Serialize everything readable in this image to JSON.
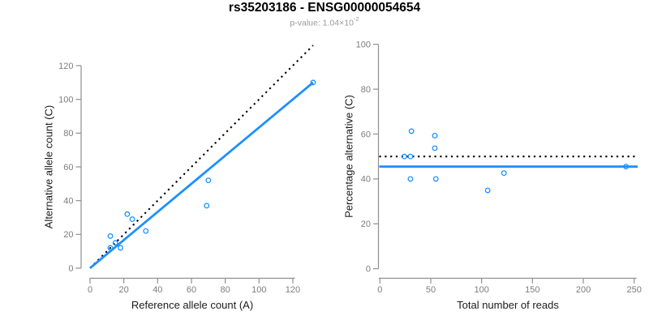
{
  "title": "rs35203186 - ENSG00000054654",
  "subtitle": {
    "text": "p-value: 1.04×10",
    "exponent": "-2"
  },
  "colors": {
    "accent": "#1e90ff",
    "dotted_line": "#000000",
    "axis": "#8f8f8f",
    "tick_label": "#7d7d7d",
    "axis_title": "#1c1c1c",
    "subtitle_gray": "#9a9a9a"
  },
  "chart_data": [
    {
      "type": "scatter",
      "name": "allele-counts",
      "xlabel": "Reference allele count (A)",
      "ylabel": "Alternative allele count (C)",
      "xticks": [
        0,
        20,
        40,
        60,
        80,
        100,
        120
      ],
      "yticks": [
        0,
        20,
        40,
        60,
        80,
        100,
        120
      ],
      "xlim": [
        0,
        132
      ],
      "ylim": [
        0,
        132
      ],
      "grid": false,
      "points": [
        [
          12,
          12
        ],
        [
          12,
          19
        ],
        [
          15,
          15
        ],
        [
          18,
          12
        ],
        [
          22,
          32
        ],
        [
          25,
          29
        ],
        [
          33,
          22
        ],
        [
          69,
          37
        ],
        [
          70,
          52
        ],
        [
          132,
          110
        ]
      ],
      "lines": [
        {
          "label": "identity-line",
          "style": "dotted",
          "from": [
            0,
            0
          ],
          "to": [
            132,
            132
          ]
        },
        {
          "label": "fit-line",
          "style": "solid",
          "from": [
            0,
            0
          ],
          "to": [
            132,
            110
          ]
        }
      ]
    },
    {
      "type": "scatter",
      "name": "percentage-alternative",
      "xlabel": "Total number of reads",
      "ylabel": "Percentage alternative (C)",
      "xticks": [
        0,
        50,
        100,
        150,
        200,
        250
      ],
      "yticks": [
        0,
        20,
        40,
        60,
        80,
        100
      ],
      "xlim": [
        0,
        250
      ],
      "ylim": [
        0,
        100
      ],
      "grid": false,
      "points": [
        [
          24,
          50
        ],
        [
          31,
          61.3
        ],
        [
          30,
          50
        ],
        [
          30,
          40
        ],
        [
          54,
          59.3
        ],
        [
          54,
          53.7
        ],
        [
          55,
          40
        ],
        [
          106,
          34.9
        ],
        [
          122,
          42.6
        ],
        [
          242,
          45.5
        ]
      ],
      "lines": [
        {
          "label": "expected-50pct-line",
          "style": "dotted",
          "y": 50
        },
        {
          "label": "mean-percentage-line",
          "style": "solid",
          "y": 45.5
        }
      ]
    }
  ]
}
